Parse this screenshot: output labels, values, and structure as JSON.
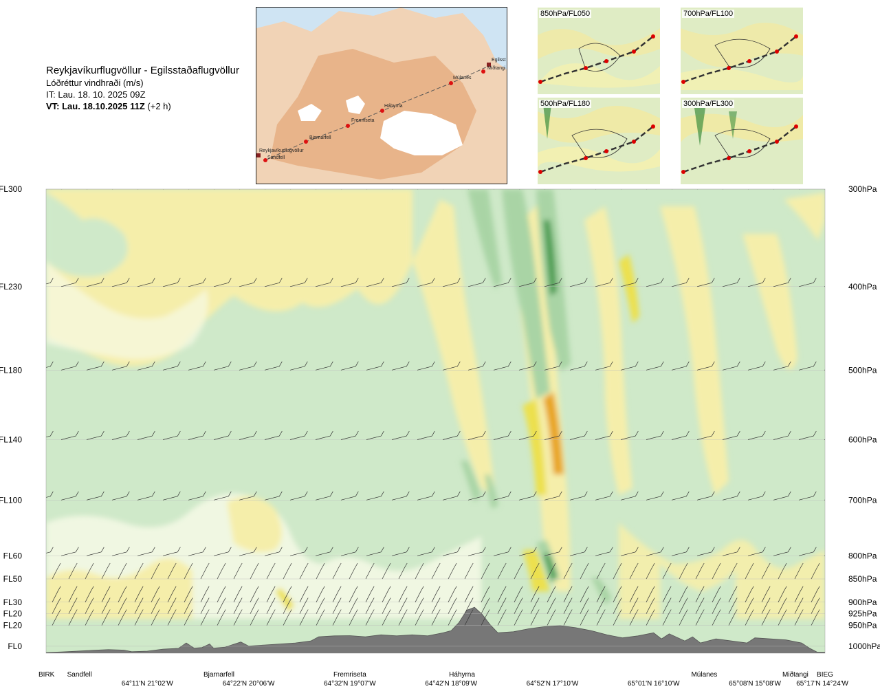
{
  "header": {
    "route": "Reykjavíkurflugvöllur - Egilsstaðaflugvöllur",
    "variable": "Lóðréttur vindhraði (m/s)",
    "issue_time": "IT: Lau. 18. 10. 2025 09Z",
    "valid_time": "VT: Lau. 18.10.2025 11Z",
    "valid_offset": " (+2 h)"
  },
  "map": {
    "labels": [
      "Reykjavíkurflugvöllur",
      "Sandfell",
      "Bjarnarfell",
      "Fremriseta",
      "Háhyrna",
      "Múlanes",
      "Miðtangi",
      "Egilsst"
    ]
  },
  "thumbnails": [
    {
      "label": "850hPa/FL050"
    },
    {
      "label": "700hPa/FL100"
    },
    {
      "label": "500hPa/FL180"
    },
    {
      "label": "300hPa/FL300"
    }
  ],
  "chart_data": {
    "type": "heatmap",
    "description_colors": {
      "weak_down": "#cfe9c9",
      "medium_down": "#a9d4a5",
      "strong_down": "#4e9e52",
      "neutral": "#f6f9e6",
      "weak_up": "#f5eeaa",
      "medium_up": "#ece04d",
      "strong_up": "#e8a522",
      "terrain": "#777777"
    },
    "left_levels": [
      {
        "label": "FL300",
        "frac": 0.0
      },
      {
        "label": "FL230",
        "frac": 0.21
      },
      {
        "label": "FL180",
        "frac": 0.39
      },
      {
        "label": "FL140",
        "frac": 0.54
      },
      {
        "label": "FL100",
        "frac": 0.67
      },
      {
        "label": "FL60",
        "frac": 0.79
      },
      {
        "label": "FL50",
        "frac": 0.84
      },
      {
        "label": "FL30",
        "frac": 0.89
      },
      {
        "label": "FL20",
        "frac": 0.915
      },
      {
        "label": "FL20",
        "frac": 0.94
      },
      {
        "label": "FL0",
        "frac": 0.985
      }
    ],
    "right_levels": [
      {
        "label": "300hPa",
        "frac": 0.0
      },
      {
        "label": "400hPa",
        "frac": 0.21
      },
      {
        "label": "500hPa",
        "frac": 0.39
      },
      {
        "label": "600hPa",
        "frac": 0.54
      },
      {
        "label": "700hPa",
        "frac": 0.67
      },
      {
        "label": "800hPa",
        "frac": 0.79
      },
      {
        "label": "850hPa",
        "frac": 0.84
      },
      {
        "label": "900hPa",
        "frac": 0.89
      },
      {
        "label": "925hPa",
        "frac": 0.915
      },
      {
        "label": "950hPa",
        "frac": 0.94
      },
      {
        "label": "1000hPa",
        "frac": 0.985
      }
    ],
    "stations": [
      {
        "label": "BIRK",
        "pos": 0.0
      },
      {
        "label": "Sandfell",
        "pos": 0.043
      },
      {
        "label": "Bjarnarfell",
        "pos": 0.222
      },
      {
        "label": "Fremriseta",
        "pos": 0.39
      },
      {
        "label": "Háhyrna",
        "pos": 0.534
      },
      {
        "label": "Múlanes",
        "pos": 0.845
      },
      {
        "label": "Miðtangi",
        "pos": 0.962
      },
      {
        "label": "BIEG",
        "pos": 1.0
      }
    ],
    "coords": [
      {
        "label": "64°11'N 21°02'W",
        "pos": 0.13
      },
      {
        "label": "64°22'N 20°06'W",
        "pos": 0.26
      },
      {
        "label": "64°32'N 19°07'W",
        "pos": 0.39
      },
      {
        "label": "64°42'N 18°09'W",
        "pos": 0.52
      },
      {
        "label": "64°52'N 17°10'W",
        "pos": 0.65
      },
      {
        "label": "65°01'N 16°10'W",
        "pos": 0.78
      },
      {
        "label": "65°08'N 15°08'W",
        "pos": 0.91
      },
      {
        "label": "65°17'N 14°24'W",
        "pos": 1.03
      }
    ],
    "terrain_profile": [
      [
        0.0,
        0.007
      ],
      [
        0.02,
        0.012
      ],
      [
        0.04,
        0.02
      ],
      [
        0.06,
        0.028
      ],
      [
        0.08,
        0.035
      ],
      [
        0.1,
        0.03
      ],
      [
        0.11,
        0.015
      ],
      [
        0.13,
        0.02
      ],
      [
        0.15,
        0.04
      ],
      [
        0.17,
        0.048
      ],
      [
        0.18,
        0.1
      ],
      [
        0.19,
        0.05
      ],
      [
        0.2,
        0.055
      ],
      [
        0.21,
        0.09
      ],
      [
        0.215,
        0.05
      ],
      [
        0.23,
        0.06
      ],
      [
        0.25,
        0.11
      ],
      [
        0.26,
        0.07
      ],
      [
        0.28,
        0.08
      ],
      [
        0.3,
        0.09
      ],
      [
        0.32,
        0.1
      ],
      [
        0.34,
        0.12
      ],
      [
        0.35,
        0.16
      ],
      [
        0.37,
        0.17
      ],
      [
        0.39,
        0.172
      ],
      [
        0.41,
        0.16
      ],
      [
        0.43,
        0.18
      ],
      [
        0.45,
        0.17
      ],
      [
        0.47,
        0.18
      ],
      [
        0.49,
        0.17
      ],
      [
        0.51,
        0.2
      ],
      [
        0.52,
        0.22
      ],
      [
        0.53,
        0.3
      ],
      [
        0.54,
        0.42
      ],
      [
        0.55,
        0.45
      ],
      [
        0.56,
        0.38
      ],
      [
        0.57,
        0.28
      ],
      [
        0.58,
        0.2
      ],
      [
        0.6,
        0.21
      ],
      [
        0.62,
        0.24
      ],
      [
        0.64,
        0.26
      ],
      [
        0.66,
        0.27
      ],
      [
        0.68,
        0.25
      ],
      [
        0.7,
        0.22
      ],
      [
        0.72,
        0.18
      ],
      [
        0.74,
        0.15
      ],
      [
        0.76,
        0.17
      ],
      [
        0.78,
        0.2
      ],
      [
        0.79,
        0.14
      ],
      [
        0.8,
        0.19
      ],
      [
        0.82,
        0.12
      ],
      [
        0.83,
        0.16
      ],
      [
        0.84,
        0.1
      ],
      [
        0.86,
        0.14
      ],
      [
        0.88,
        0.12
      ],
      [
        0.9,
        0.1
      ],
      [
        0.91,
        0.15
      ],
      [
        0.93,
        0.14
      ],
      [
        0.95,
        0.13
      ],
      [
        0.97,
        0.1
      ],
      [
        0.98,
        0.05
      ],
      [
        0.99,
        0.01
      ],
      [
        1.0,
        0.01
      ]
    ]
  }
}
